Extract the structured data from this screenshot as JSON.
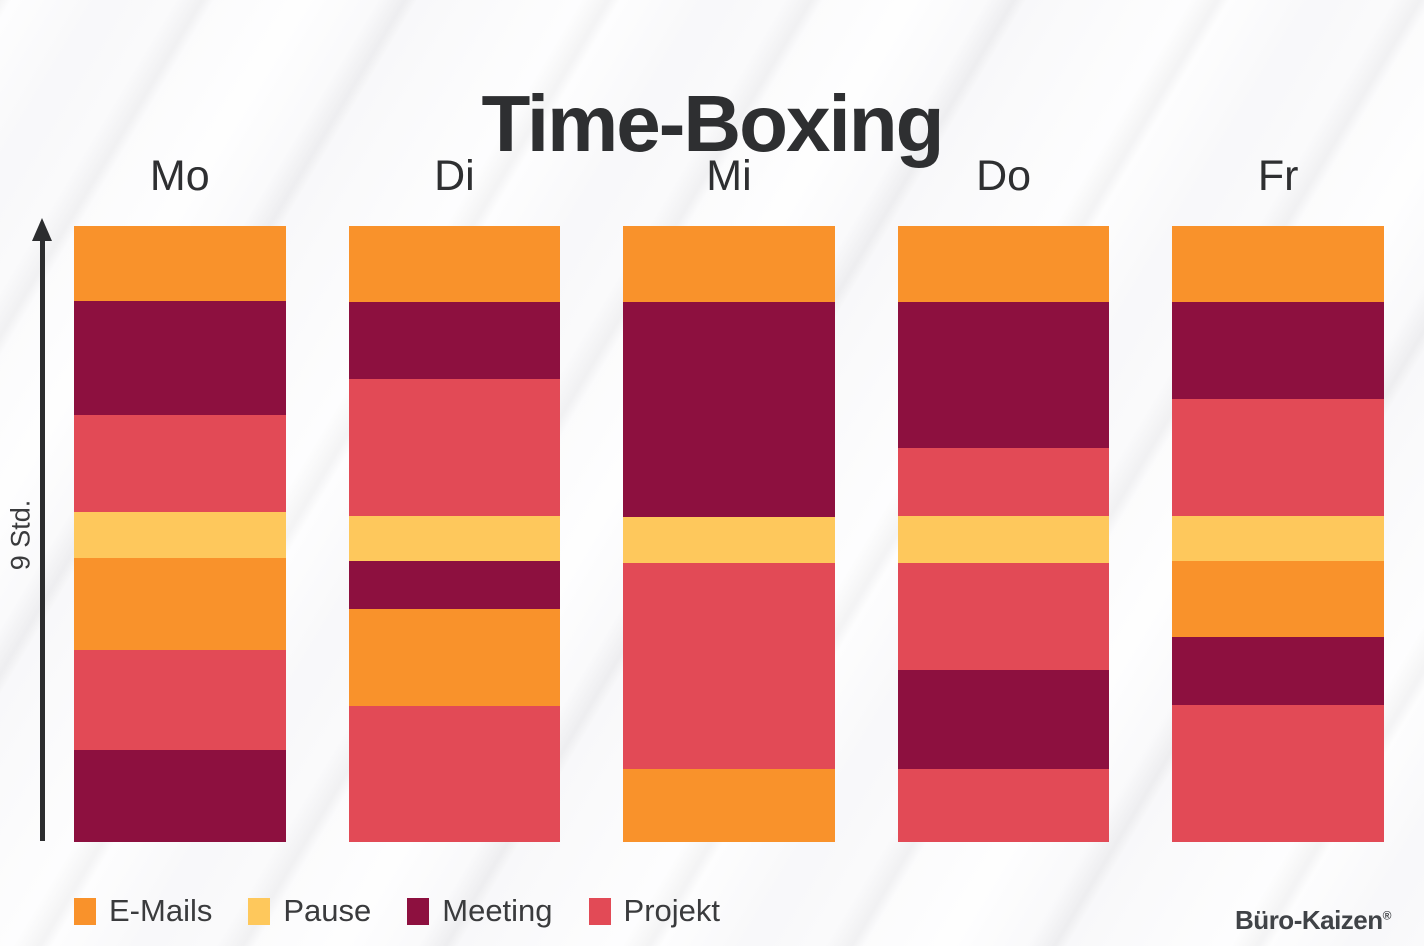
{
  "title": "Time-Boxing",
  "y_axis": {
    "label": "9 Std."
  },
  "branding": {
    "name": "Büro-Kaizen",
    "registered_mark": "®"
  },
  "legend": {
    "position": "bottom",
    "items": [
      {
        "label": "E-Mails",
        "color": "#F9922B"
      },
      {
        "label": "Pause",
        "color": "#FEC85C"
      },
      {
        "label": "Meeting",
        "color": "#8D103F"
      },
      {
        "label": "Projekt",
        "color": "#E24A56"
      }
    ]
  },
  "chart_data": {
    "type": "bar",
    "variant": "stacked-vertical-timeboxes",
    "title": "Time-Boxing",
    "ylabel": "9 Std.",
    "unit": "Stunden",
    "hours_per_day": 9,
    "categories": [
      "Mo",
      "Di",
      "Mi",
      "Do",
      "Fr"
    ],
    "segment_order": "top-to-bottom",
    "legend_position": "bottom",
    "series_colors": {
      "E-Mails": "#F9922B",
      "Pause": "#FEC85C",
      "Meeting": "#8D103F",
      "Projekt": "#E24A56"
    },
    "bars": [
      {
        "day": "Mo",
        "segments": [
          {
            "category": "E-Mails",
            "hours": 1.0,
            "pct": 12.1
          },
          {
            "category": "Meeting",
            "hours": 1.75,
            "pct": 18.6
          },
          {
            "category": "Projekt",
            "hours": 1.5,
            "pct": 15.8
          },
          {
            "category": "Pause",
            "hours": 0.75,
            "pct": 7.4
          },
          {
            "category": "E-Mails",
            "hours": 1.25,
            "pct": 15.0
          },
          {
            "category": "Projekt",
            "hours": 1.5,
            "pct": 16.2
          },
          {
            "category": "Meeting",
            "hours": 1.25,
            "pct": 14.9
          }
        ]
      },
      {
        "day": "Di",
        "segments": [
          {
            "category": "E-Mails",
            "hours": 1.0,
            "pct": 12.4
          },
          {
            "category": "Meeting",
            "hours": 1.0,
            "pct": 12.5
          },
          {
            "category": "Projekt",
            "hours": 2.0,
            "pct": 22.2
          },
          {
            "category": "Pause",
            "hours": 0.75,
            "pct": 7.2
          },
          {
            "category": "Meeting",
            "hours": 0.75,
            "pct": 7.8
          },
          {
            "category": "E-Mails",
            "hours": 1.5,
            "pct": 15.9
          },
          {
            "category": "Projekt",
            "hours": 2.0,
            "pct": 22.0
          }
        ]
      },
      {
        "day": "Mi",
        "segments": [
          {
            "category": "E-Mails",
            "hours": 1.0,
            "pct": 12.4
          },
          {
            "category": "Meeting",
            "hours": 3.25,
            "pct": 34.8
          },
          {
            "category": "Pause",
            "hours": 0.75,
            "pct": 7.5
          },
          {
            "category": "Projekt",
            "hours": 3.0,
            "pct": 33.5
          },
          {
            "category": "E-Mails",
            "hours": 1.0,
            "pct": 11.8
          }
        ]
      },
      {
        "day": "Do",
        "segments": [
          {
            "category": "E-Mails",
            "hours": 1.0,
            "pct": 12.4
          },
          {
            "category": "Meeting",
            "hours": 2.25,
            "pct": 23.6
          },
          {
            "category": "Projekt",
            "hours": 1.0,
            "pct": 11.1
          },
          {
            "category": "Pause",
            "hours": 0.75,
            "pct": 7.5
          },
          {
            "category": "Projekt",
            "hours": 1.5,
            "pct": 17.4
          },
          {
            "category": "Meeting",
            "hours": 1.5,
            "pct": 16.1
          },
          {
            "category": "Projekt",
            "hours": 1.0,
            "pct": 11.8
          }
        ]
      },
      {
        "day": "Fr",
        "segments": [
          {
            "category": "E-Mails",
            "hours": 1.0,
            "pct": 12.4
          },
          {
            "category": "Meeting",
            "hours": 1.5,
            "pct": 15.6
          },
          {
            "category": "Projekt",
            "hours": 1.75,
            "pct": 19.0
          },
          {
            "category": "Pause",
            "hours": 0.75,
            "pct": 7.4
          },
          {
            "category": "E-Mails",
            "hours": 1.0,
            "pct": 12.3
          },
          {
            "category": "Meeting",
            "hours": 1.0,
            "pct": 11.0
          },
          {
            "category": "Projekt",
            "hours": 2.0,
            "pct": 22.2
          }
        ]
      }
    ]
  }
}
